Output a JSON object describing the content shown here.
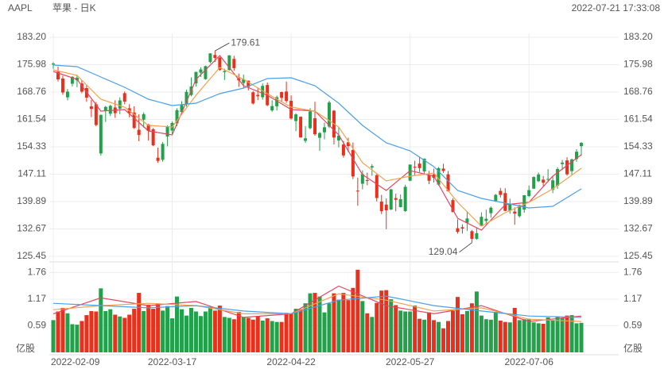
{
  "chart_data": {
    "type": "candlestick",
    "symbol": "AAPL",
    "title": "苹果 - 日K",
    "timestamp": "2022-07-21 17:33:08",
    "xlim": [
      0,
      111
    ],
    "xticks": [
      {
        "value": 0,
        "label": "2022-02-09"
      },
      {
        "value": 25,
        "label": "2022-03-17"
      },
      {
        "value": 50,
        "label": "2022-04-22"
      },
      {
        "value": 75,
        "label": "2022-05-27"
      },
      {
        "value": 100,
        "label": "2022-07-06"
      }
    ],
    "ylim": [
      125.45,
      183.2
    ],
    "yticks": [
      {
        "value": 183.2,
        "label": "183.20"
      },
      {
        "value": 175.98,
        "label": "175.98"
      },
      {
        "value": 168.76,
        "label": "168.76"
      },
      {
        "value": 161.54,
        "label": "161.54"
      },
      {
        "value": 154.33,
        "label": "154.33"
      },
      {
        "value": 147.11,
        "label": "147.11"
      },
      {
        "value": 139.89,
        "label": "139.89"
      },
      {
        "value": 132.67,
        "label": "132.67"
      },
      {
        "value": 125.45,
        "label": "125.45"
      }
    ],
    "grid": true,
    "up_color": "#22a14b",
    "down_color": "#e8301c",
    "open": [
      176.05,
      174.14,
      172.33,
      167.37,
      170.97,
      171.85,
      171.03,
      169.82,
      164.98,
      165.54,
      152.58,
      163.84,
      163.06,
      164.7,
      164.39,
      168.47,
      164.49,
      163.36,
      158.82,
      161.48,
      160.2,
      158.93,
      151.45,
      150.9,
      157.05,
      158.61,
      160.51,
      163.51,
      165.51,
      167.99,
      171.06,
      173.88,
      172.17,
      176.69,
      178.55,
      177.84,
      174.03,
      174.57,
      177.5,
      172.36,
      171.16,
      171.78,
      168.71,
      168.02,
      167.39,
      170.62,
      163.92,
      165.02,
      168.76,
      168.91,
      166.46,
      161.12,
      162.25,
      155.91,
      159.25,
      161.84,
      156.71,
      158.15,
      159.67,
      163.85,
      156.01,
      154.93,
      155.52,
      153.5,
      142.77,
      144.59,
      145.55,
      148.86,
      146.85,
      139.88,
      139.09,
      137.79,
      140.81,
      138.43,
      137.39,
      145.39,
      149.07,
      149.9,
      147.83,
      146.9,
      147.03,
      144.35,
      148.58,
      147.08,
      140.28,
      132.87,
      133.13,
      134.29,
      132.08,
      130.07,
      133.42,
      134.79,
      136.82,
      139.9,
      142.7,
      142.13,
      137.46,
      137.25,
      136.04,
      137.77,
      141.35,
      143.29,
      145.26,
      145.67,
      145.76,
      142.99,
      144.08,
      149.78,
      150.74,
      147.92,
      151.12,
      154.5
    ],
    "high": [
      176.65,
      175.48,
      173.08,
      169.58,
      172.95,
      173.34,
      171.91,
      170.54,
      166.69,
      166.15,
      162.85,
      165.12,
      165.42,
      166.6,
      167.36,
      168.91,
      165.55,
      165.02,
      162.88,
      163.41,
      160.39,
      159.28,
      154.12,
      155.57,
      160.0,
      161.0,
      164.48,
      166.35,
      169.42,
      172.64,
      174.14,
      175.28,
      175.73,
      179.01,
      179.61,
      178.03,
      174.88,
      178.49,
      178.3,
      173.63,
      173.36,
      171.78,
      169.03,
      169.87,
      171.04,
      171.27,
      166.6,
      167.82,
      168.88,
      171.53,
      167.87,
      163.17,
      162.34,
      159.79,
      164.52,
      166.2,
      158.23,
      160.71,
      166.48,
      164.08,
      159.44,
      155.83,
      156.74,
      155.45,
      146.2,
      148.1,
      147.52,
      149.77,
      147.36,
      141.66,
      140.7,
      143.26,
      141.97,
      141.79,
      144.34,
      149.68,
      150.66,
      151.74,
      151.27,
      147.97,
      148.57,
      149.0,
      149.87,
      147.95,
      140.76,
      135.2,
      133.89,
      137.34,
      132.39,
      133.08,
      137.06,
      137.76,
      138.59,
      141.91,
      143.49,
      143.42,
      140.67,
      138.37,
      139.04,
      141.61,
      144.12,
      146.55,
      147.55,
      146.64,
      148.45,
      146.45,
      148.95,
      150.86,
      151.57,
      151.23,
      153.72,
      155.57
    ],
    "low": [
      174.9,
      171.55,
      168.04,
      166.56,
      170.25,
      170.05,
      168.47,
      166.19,
      162.15,
      159.75,
      152.0,
      160.87,
      162.43,
      161.97,
      162.95,
      165.55,
      162.1,
      159.04,
      155.8,
      159.41,
      155.98,
      154.5,
      150.1,
      150.38,
      154.46,
      157.63,
      159.76,
      163.01,
      164.91,
      167.65,
      170.21,
      172.75,
      172.0,
      176.34,
      176.7,
      174.4,
      171.94,
      174.44,
      174.42,
      170.13,
      169.85,
      169.2,
      165.5,
      166.64,
      166.77,
      165.04,
      163.57,
      163.91,
      166.1,
      165.91,
      161.5,
      158.46,
      156.72,
      155.38,
      158.93,
      157.25,
      153.27,
      156.32,
      159.26,
      154.95,
      154.18,
      151.49,
      152.93,
      145.81,
      138.8,
      143.11,
      144.18,
      146.68,
      139.9,
      136.6,
      132.61,
      137.65,
      137.33,
      138.34,
      137.14,
      145.26,
      146.84,
      147.68,
      146.86,
      144.46,
      144.9,
      144.1,
      147.46,
      142.53,
      137.06,
      131.44,
      131.48,
      132.16,
      129.04,
      129.81,
      133.32,
      133.91,
      135.63,
      139.77,
      140.97,
      137.33,
      136.67,
      133.77,
      135.66,
      136.93,
      141.08,
      143.28,
      145.0,
      143.78,
      145.05,
      142.12,
      143.25,
      148.2,
      146.7,
      146.91,
      150.37,
      151.94
    ],
    "close": [
      176.28,
      172.12,
      168.64,
      168.88,
      172.79,
      172.55,
      168.88,
      167.3,
      164.32,
      160.07,
      162.74,
      164.85,
      165.12,
      163.2,
      166.56,
      166.23,
      163.17,
      159.3,
      157.44,
      162.95,
      158.52,
      154.73,
      150.62,
      155.09,
      159.59,
      160.62,
      163.98,
      165.38,
      168.82,
      170.21,
      174.07,
      174.72,
      175.6,
      178.96,
      177.77,
      174.61,
      174.31,
      178.44,
      175.06,
      171.83,
      172.14,
      170.09,
      165.75,
      167.66,
      170.4,
      165.29,
      165.07,
      167.4,
      167.23,
      166.42,
      161.79,
      162.88,
      156.8,
      156.57,
      163.64,
      157.65,
      157.96,
      159.48,
      166.02,
      156.77,
      157.28,
      152.06,
      154.51,
      146.5,
      142.56,
      147.11,
      145.54,
      149.24,
      140.82,
      137.35,
      137.59,
      143.11,
      140.36,
      140.52,
      143.78,
      149.64,
      148.84,
      148.71,
      151.21,
      145.38,
      146.14,
      148.71,
      147.96,
      142.64,
      137.13,
      131.88,
      132.76,
      135.43,
      130.06,
      131.56,
      135.87,
      135.35,
      138.27,
      141.66,
      141.66,
      137.44,
      139.23,
      136.72,
      138.93,
      141.56,
      142.92,
      146.35,
      147.04,
      144.87,
      145.86,
      145.49,
      148.47,
      150.17,
      147.07,
      151.0,
      153.04,
      155.35
    ],
    "moving_averages": [
      {
        "color": "#e2475f",
        "x": [
          0,
          5,
          10,
          15,
          20,
          25,
          30,
          35,
          40,
          45,
          50,
          55,
          60,
          65,
          70,
          75,
          80,
          85,
          90,
          95,
          100,
          105,
          111
        ],
        "values": [
          174.2,
          172.11,
          163.74,
          164.16,
          158.51,
          157.47,
          172.11,
          178.39,
          170.44,
          167.93,
          164.16,
          163.74,
          157.47,
          147.01,
          142.82,
          148.05,
          146.59,
          135.5,
          132.36,
          139.06,
          139.69,
          146.59,
          152.24
        ]
      },
      {
        "color": "#f2a24e",
        "x": [
          0,
          5,
          10,
          15,
          20,
          25,
          30,
          35,
          40,
          45,
          50,
          55,
          60,
          65,
          70,
          75,
          80,
          85,
          90,
          95,
          100,
          105,
          111
        ],
        "values": [
          174.62,
          173.16,
          166.88,
          164.79,
          159.98,
          159.56,
          167.93,
          175.25,
          172.11,
          168.35,
          164.79,
          163.74,
          159.56,
          150.15,
          145.33,
          146.59,
          147.43,
          139.69,
          133.41,
          136.96,
          139.69,
          143.24,
          148.68
        ]
      },
      {
        "color": "#4c9fe6",
        "x": [
          0,
          5,
          10,
          15,
          20,
          25,
          30,
          35,
          40,
          45,
          50,
          55,
          60,
          65,
          70,
          75,
          80,
          85,
          90,
          95,
          100,
          105,
          111
        ],
        "values": [
          175.88,
          175.46,
          172.74,
          170.02,
          166.88,
          165.21,
          165.84,
          168.35,
          169.81,
          172.32,
          172.53,
          170.44,
          165.84,
          159.98,
          155.38,
          153.28,
          149.1,
          142.82,
          140.73,
          139.48,
          138.22,
          138.64,
          143.24
        ]
      }
    ],
    "annotations": [
      {
        "x": 34,
        "value": 179.61
      },
      {
        "x": 88,
        "value": 129.04
      }
    ],
    "volume": {
      "unit": "亿股",
      "ylim": [
        0,
        1.94
      ],
      "yticks": [
        1.76,
        1.17,
        0.59
      ],
      "values": [
        0.71,
        0.9,
        0.98,
        0.86,
        0.62,
        0.61,
        0.69,
        0.82,
        0.91,
        0.9,
        1.41,
        0.91,
        0.95,
        0.83,
        0.79,
        0.76,
        0.83,
        0.96,
        1.31,
        0.91,
        1.05,
        0.96,
        1.08,
        0.92,
        1.02,
        0.75,
        1.23,
        0.95,
        0.81,
        0.98,
        0.9,
        0.8,
        0.9,
        1.0,
        0.92,
        1.03,
        0.78,
        0.76,
        0.73,
        0.89,
        0.77,
        0.76,
        0.72,
        0.79,
        0.7,
        0.75,
        0.69,
        0.67,
        0.67,
        0.87,
        0.85,
        0.96,
        0.95,
        1.08,
        1.3,
        1.31,
        1.23,
        0.88,
        1.08,
        1.3,
        1.16,
        1.31,
        1.15,
        1.42,
        1.82,
        1.13,
        0.86,
        0.78,
        1.09,
        1.36,
        1.37,
        1.17,
        1.04,
        0.92,
        0.9,
        0.9,
        1.03,
        0.74,
        0.72,
        0.88,
        0.71,
        0.67,
        0.53,
        0.69,
        0.91,
        1.22,
        0.84,
        0.91,
        1.08,
        1.34,
        0.81,
        0.73,
        0.72,
        0.89,
        0.7,
        0.67,
        0.66,
        0.98,
        0.71,
        0.73,
        0.74,
        0.66,
        0.64,
        0.63,
        0.77,
        0.71,
        0.78,
        0.76,
        0.81,
        0.82,
        0.64,
        0.65
      ],
      "moving_averages": [
        {
          "color": "#e2475f",
          "x": [
            0,
            10,
            20,
            30,
            40,
            50,
            60,
            70,
            80,
            90,
            100,
            111
          ],
          "values": [
            0.85,
            1.2,
            1.03,
            1.12,
            0.77,
            0.85,
            1.46,
            1.03,
            0.85,
            1.03,
            0.68,
            0.8
          ]
        },
        {
          "color": "#f2a24e",
          "x": [
            0,
            10,
            20,
            30,
            40,
            50,
            60,
            70,
            80,
            90,
            100,
            111
          ],
          "values": [
            0.94,
            1.03,
            1.08,
            1.03,
            0.85,
            0.85,
            1.29,
            1.15,
            0.91,
            0.98,
            0.73,
            0.68
          ]
        },
        {
          "color": "#4c9fe6",
          "x": [
            0,
            10,
            20,
            30,
            40,
            50,
            60,
            70,
            80,
            90,
            100,
            111
          ],
          "values": [
            1.08,
            1.03,
            0.98,
            1.03,
            0.91,
            0.85,
            1.15,
            1.24,
            1.03,
            0.91,
            0.8,
            0.77
          ]
        }
      ]
    }
  }
}
